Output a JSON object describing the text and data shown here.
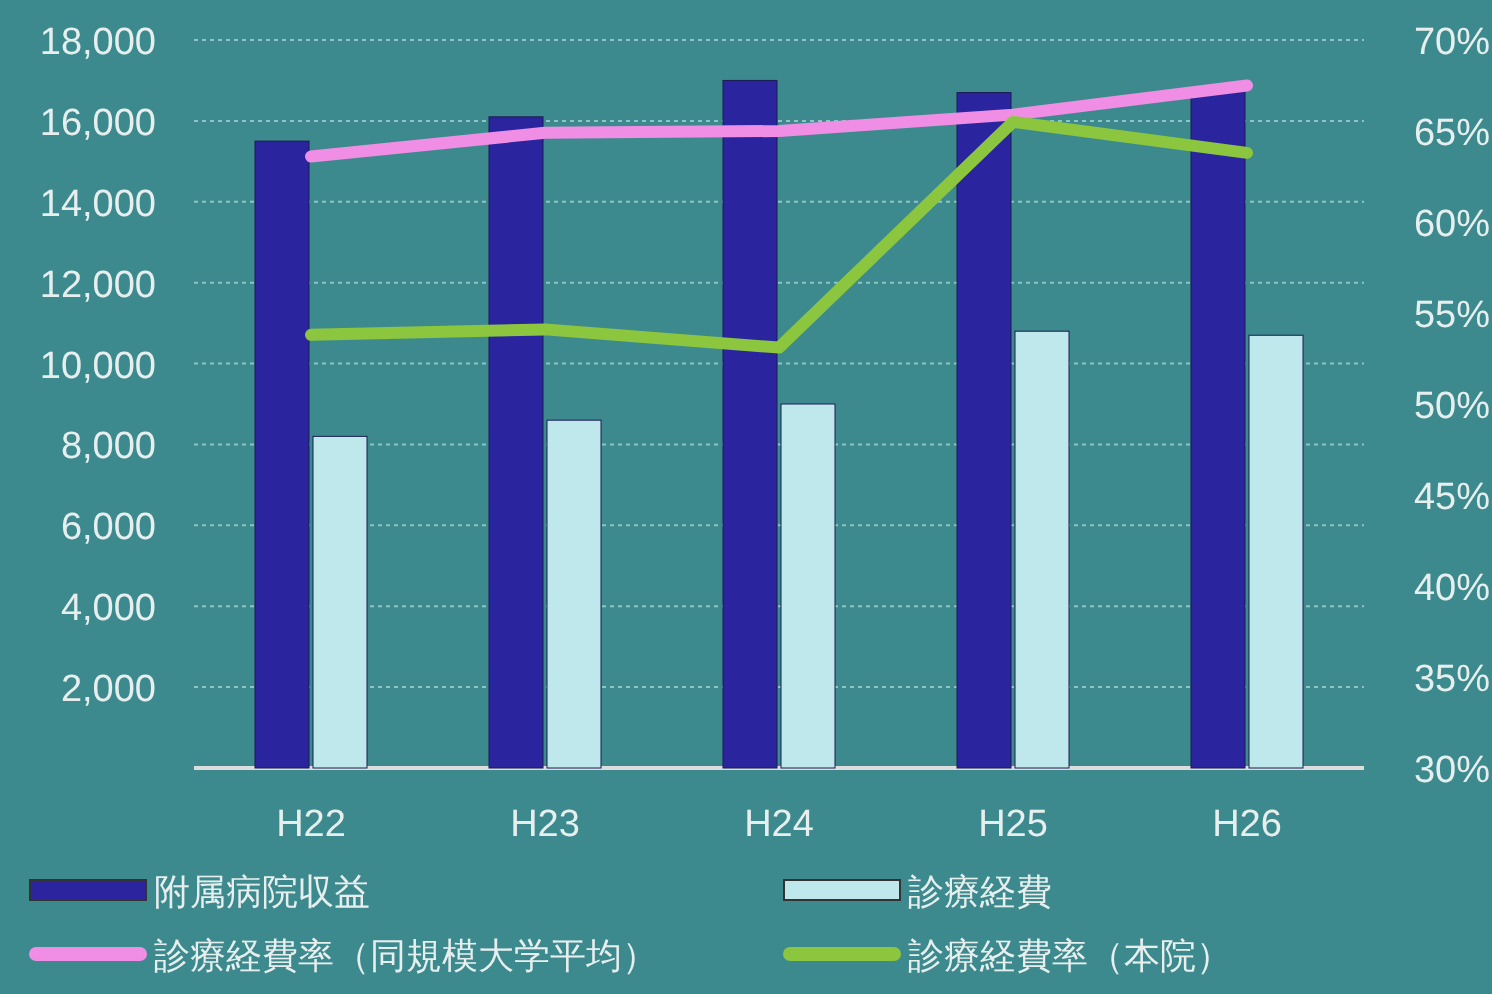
{
  "chart_data": {
    "type": "bar",
    "categories": [
      "H22",
      "H23",
      "H24",
      "H25",
      "H26"
    ],
    "series": [
      {
        "name": "附属病院収益",
        "color": "#2a259e",
        "values": [
          15500,
          16100,
          17000,
          16700,
          16800
        ]
      },
      {
        "name": "診療経費",
        "color": "#bfe8ec",
        "values": [
          8200,
          8600,
          9000,
          10800,
          10700
        ]
      },
      {
        "name": "診療経費率（同規模大学平均）",
        "type": "line",
        "axis": "y2",
        "color": "#f08ee6",
        "values": [
          63.6,
          64.9,
          65.0,
          65.9,
          67.5
        ]
      },
      {
        "name": "診療経費率（本院）",
        "type": "line",
        "axis": "y2",
        "color": "#8cc63f",
        "values": [
          53.8,
          54.1,
          53.1,
          65.5,
          63.8
        ]
      }
    ],
    "ylim": [
      0,
      18000
    ],
    "yticks": [
      {
        "value": 0,
        "label": null
      },
      {
        "value": 2000,
        "label": "2,000"
      },
      {
        "value": 4000,
        "label": "4,000"
      },
      {
        "value": 6000,
        "label": "6,000"
      },
      {
        "value": 8000,
        "label": "8,000"
      },
      {
        "value": 10000,
        "label": "10,000"
      },
      {
        "value": 12000,
        "label": "12,000"
      },
      {
        "value": 14000,
        "label": "14,000"
      },
      {
        "value": 16000,
        "label": "16,000"
      },
      {
        "value": 18000,
        "label": "18,000"
      }
    ],
    "y2lim": [
      30,
      70
    ],
    "y2ticks": [
      {
        "value": 30,
        "label": "30%"
      },
      {
        "value": 35,
        "label": "35%"
      },
      {
        "value": 40,
        "label": "40%"
      },
      {
        "value": 45,
        "label": "45%"
      },
      {
        "value": 50,
        "label": "50%"
      },
      {
        "value": 55,
        "label": "55%"
      },
      {
        "value": 60,
        "label": "60%"
      },
      {
        "value": 65,
        "label": "65%"
      },
      {
        "value": 70,
        "label": "70%"
      }
    ],
    "grid": "y",
    "legend": "bottom"
  }
}
